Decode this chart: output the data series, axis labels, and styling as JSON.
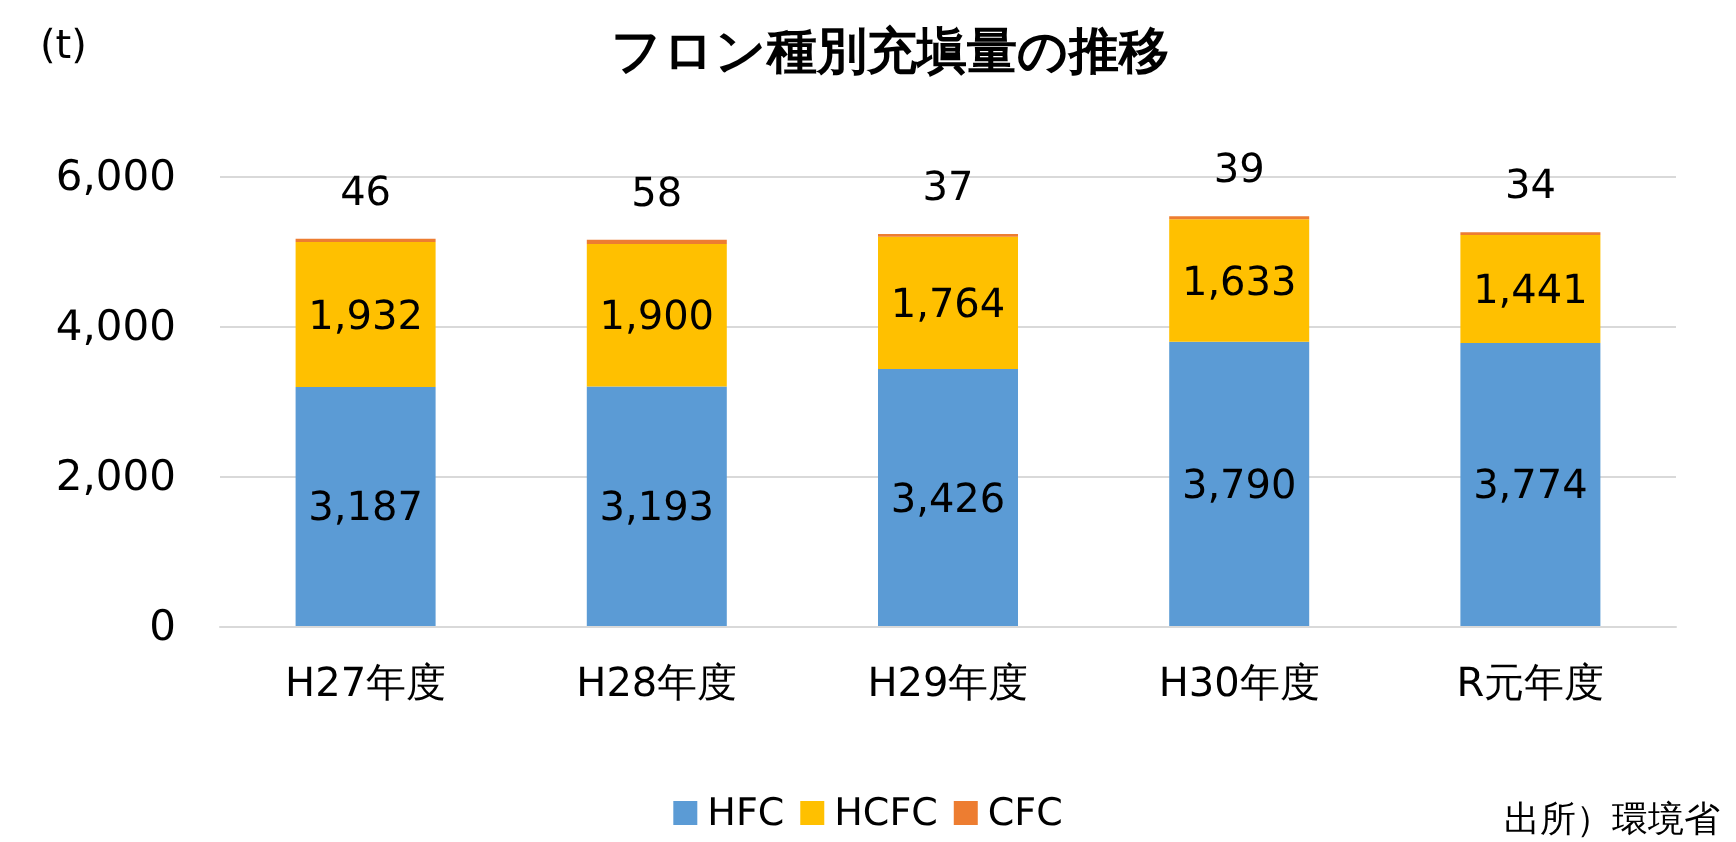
{
  "chart_data": {
    "type": "bar",
    "title": "フロン種別充塡量の推移",
    "ylabel": "(t)",
    "categories": [
      "H27年度",
      "H28年度",
      "H29年度",
      "H30年度",
      "R元年度"
    ],
    "stacked": true,
    "series": [
      {
        "name": "HFC",
        "color": "#5b9bd5",
        "values": [
          3187,
          3193,
          3426,
          3790,
          3774
        ],
        "value_labels": [
          "3,187",
          "3,193",
          "3,426",
          "3,790",
          "3,774"
        ]
      },
      {
        "name": "HCFC",
        "color": "#ffc000",
        "values": [
          1932,
          1900,
          1764,
          1633,
          1441
        ],
        "value_labels": [
          "1,932",
          "1,900",
          "1,764",
          "1,633",
          "1,441"
        ]
      },
      {
        "name": "CFC",
        "color": "#ed7d31",
        "values": [
          46,
          58,
          37,
          39,
          34
        ],
        "value_labels": [
          "46",
          "58",
          "37",
          "39",
          "34"
        ]
      }
    ],
    "ylim": [
      0,
      6000
    ],
    "yticks": [
      {
        "value": 0,
        "label": "0"
      },
      {
        "value": 2000,
        "label": "2,000"
      },
      {
        "value": 4000,
        "label": "4,000"
      },
      {
        "value": 6000,
        "label": "6,000"
      }
    ],
    "grid": "y",
    "legend": "bottom",
    "annotations": [
      "出所）環境省"
    ]
  }
}
